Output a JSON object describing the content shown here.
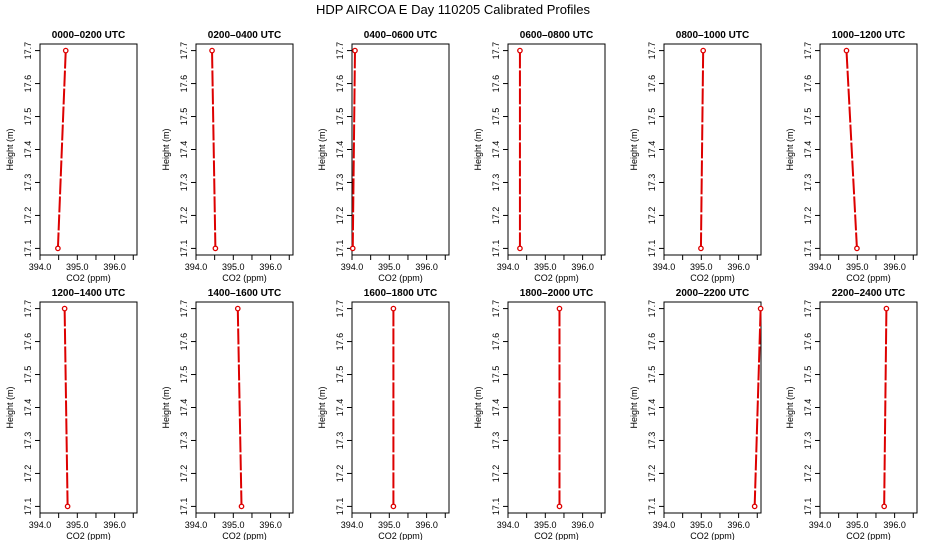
{
  "figure_title": "HDP AIRCOA E  Day 110205  Calibrated Profiles",
  "colors": {
    "line": "#dd0000",
    "point": "#dd0000",
    "axes": "#000000"
  },
  "chart_data": [
    {
      "type": "line",
      "title": "0000–0200 UTC",
      "xlabel": "CO2 (ppm)",
      "ylabel": "Height (m)",
      "xlim": [
        394.0,
        396.6
      ],
      "ylim": [
        17.08,
        17.72
      ],
      "xticks": [
        "394.0",
        "395.0",
        "396.0"
      ],
      "xtick_minor": [
        394.5,
        395.5,
        396.5
      ],
      "yticks": [
        "17.1",
        "17.2",
        "17.3",
        "17.4",
        "17.5",
        "17.6",
        "17.7"
      ],
      "points": [
        {
          "x": 394.48,
          "y": 17.1
        },
        {
          "x": 394.69,
          "y": 17.7
        }
      ]
    },
    {
      "type": "line",
      "title": "0200–0400 UTC",
      "xlabel": "CO2 (ppm)",
      "ylabel": "Height (m)",
      "xlim": [
        394.0,
        396.6
      ],
      "ylim": [
        17.08,
        17.72
      ],
      "xticks": [
        "394.0",
        "395.0",
        "396.0"
      ],
      "xtick_minor": [
        394.5,
        395.5,
        396.5
      ],
      "yticks": [
        "17.1",
        "17.2",
        "17.3",
        "17.4",
        "17.5",
        "17.6",
        "17.7"
      ],
      "points": [
        {
          "x": 394.52,
          "y": 17.1
        },
        {
          "x": 394.43,
          "y": 17.7
        }
      ]
    },
    {
      "type": "line",
      "title": "0400–0600 UTC",
      "xlabel": "CO2 (ppm)",
      "ylabel": "Height (m)",
      "xlim": [
        394.0,
        396.6
      ],
      "ylim": [
        17.08,
        17.72
      ],
      "xticks": [
        "394.0",
        "395.0",
        "396.0"
      ],
      "xtick_minor": [
        394.5,
        395.5,
        396.5
      ],
      "yticks": [
        "17.1",
        "17.2",
        "17.3",
        "17.4",
        "17.5",
        "17.6",
        "17.7"
      ],
      "points": [
        {
          "x": 394.02,
          "y": 17.1
        },
        {
          "x": 394.08,
          "y": 17.7
        }
      ]
    },
    {
      "type": "line",
      "title": "0600–0800 UTC",
      "xlabel": "CO2 (ppm)",
      "ylabel": "Height (m)",
      "xlim": [
        394.0,
        396.6
      ],
      "ylim": [
        17.08,
        17.72
      ],
      "xticks": [
        "394.0",
        "395.0",
        "396.0"
      ],
      "xtick_minor": [
        394.5,
        395.5,
        396.5
      ],
      "yticks": [
        "17.1",
        "17.2",
        "17.3",
        "17.4",
        "17.5",
        "17.6",
        "17.7"
      ],
      "points": [
        {
          "x": 394.32,
          "y": 17.1
        },
        {
          "x": 394.32,
          "y": 17.7
        }
      ]
    },
    {
      "type": "line",
      "title": "0800–1000 UTC",
      "xlabel": "CO2 (ppm)",
      "ylabel": "Height (m)",
      "xlim": [
        394.0,
        396.6
      ],
      "ylim": [
        17.08,
        17.72
      ],
      "xticks": [
        "394.0",
        "395.0",
        "396.0"
      ],
      "xtick_minor": [
        394.5,
        395.5,
        396.5
      ],
      "yticks": [
        "17.1",
        "17.2",
        "17.3",
        "17.4",
        "17.5",
        "17.6",
        "17.7"
      ],
      "points": [
        {
          "x": 394.99,
          "y": 17.1
        },
        {
          "x": 395.05,
          "y": 17.7
        }
      ]
    },
    {
      "type": "line",
      "title": "1000–1200 UTC",
      "xlabel": "CO2 (ppm)",
      "ylabel": "Height (m)",
      "xlim": [
        394.0,
        396.6
      ],
      "ylim": [
        17.08,
        17.72
      ],
      "xticks": [
        "394.0",
        "395.0",
        "396.0"
      ],
      "xtick_minor": [
        394.5,
        395.5,
        396.5
      ],
      "yticks": [
        "17.1",
        "17.2",
        "17.3",
        "17.4",
        "17.5",
        "17.6",
        "17.7"
      ],
      "points": [
        {
          "x": 394.99,
          "y": 17.1
        },
        {
          "x": 394.71,
          "y": 17.7
        }
      ]
    },
    {
      "type": "line",
      "title": "1200–1400 UTC",
      "xlabel": "CO2 (ppm)",
      "ylabel": "Height (m)",
      "xlim": [
        394.0,
        396.6
      ],
      "ylim": [
        17.08,
        17.72
      ],
      "xticks": [
        "394.0",
        "395.0",
        "396.0"
      ],
      "xtick_minor": [
        394.5,
        395.5,
        396.5
      ],
      "yticks": [
        "17.1",
        "17.2",
        "17.3",
        "17.4",
        "17.5",
        "17.6",
        "17.7"
      ],
      "points": [
        {
          "x": 394.74,
          "y": 17.1
        },
        {
          "x": 394.66,
          "y": 17.7
        }
      ]
    },
    {
      "type": "line",
      "title": "1400–1600 UTC",
      "xlabel": "CO2 (ppm)",
      "ylabel": "Height (m)",
      "xlim": [
        394.0,
        396.6
      ],
      "ylim": [
        17.08,
        17.72
      ],
      "xticks": [
        "394.0",
        "395.0",
        "396.0"
      ],
      "xtick_minor": [
        394.5,
        395.5,
        396.5
      ],
      "yticks": [
        "17.1",
        "17.2",
        "17.3",
        "17.4",
        "17.5",
        "17.6",
        "17.7"
      ],
      "points": [
        {
          "x": 395.22,
          "y": 17.1
        },
        {
          "x": 395.12,
          "y": 17.7
        }
      ]
    },
    {
      "type": "line",
      "title": "1600–1800 UTC",
      "xlabel": "CO2 (ppm)",
      "ylabel": "Height (m)",
      "xlim": [
        394.0,
        396.6
      ],
      "ylim": [
        17.08,
        17.72
      ],
      "xticks": [
        "394.0",
        "395.0",
        "396.0"
      ],
      "xtick_minor": [
        394.5,
        395.5,
        396.5
      ],
      "yticks": [
        "17.1",
        "17.2",
        "17.3",
        "17.4",
        "17.5",
        "17.6",
        "17.7"
      ],
      "points": [
        {
          "x": 395.11,
          "y": 17.1
        },
        {
          "x": 395.11,
          "y": 17.7
        }
      ]
    },
    {
      "type": "line",
      "title": "1800–2000 UTC",
      "xlabel": "CO2 (ppm)",
      "ylabel": "Height (m)",
      "xlim": [
        394.0,
        396.6
      ],
      "ylim": [
        17.08,
        17.72
      ],
      "xticks": [
        "394.0",
        "395.0",
        "396.0"
      ],
      "xtick_minor": [
        394.5,
        395.5,
        396.5
      ],
      "yticks": [
        "17.1",
        "17.2",
        "17.3",
        "17.4",
        "17.5",
        "17.6",
        "17.7"
      ],
      "points": [
        {
          "x": 395.38,
          "y": 17.1
        },
        {
          "x": 395.38,
          "y": 17.7
        }
      ]
    },
    {
      "type": "line",
      "title": "2000–2200 UTC",
      "xlabel": "CO2 (ppm)",
      "ylabel": "Height (m)",
      "xlim": [
        394.0,
        396.6
      ],
      "ylim": [
        17.08,
        17.72
      ],
      "xticks": [
        "394.0",
        "395.0",
        "396.0"
      ],
      "xtick_minor": [
        394.5,
        395.5,
        396.5
      ],
      "yticks": [
        "17.1",
        "17.2",
        "17.3",
        "17.4",
        "17.5",
        "17.6",
        "17.7"
      ],
      "points": [
        {
          "x": 396.43,
          "y": 17.1
        },
        {
          "x": 396.59,
          "y": 17.7
        }
      ]
    },
    {
      "type": "line",
      "title": "2200–2400 UTC",
      "xlabel": "CO2 (ppm)",
      "ylabel": "Height (m)",
      "xlim": [
        394.0,
        396.6
      ],
      "ylim": [
        17.08,
        17.72
      ],
      "xticks": [
        "394.0",
        "395.0",
        "396.0"
      ],
      "xtick_minor": [
        394.5,
        395.5,
        396.5
      ],
      "yticks": [
        "17.1",
        "17.2",
        "17.3",
        "17.4",
        "17.5",
        "17.6",
        "17.7"
      ],
      "points": [
        {
          "x": 395.72,
          "y": 17.1
        },
        {
          "x": 395.78,
          "y": 17.7
        }
      ]
    }
  ]
}
